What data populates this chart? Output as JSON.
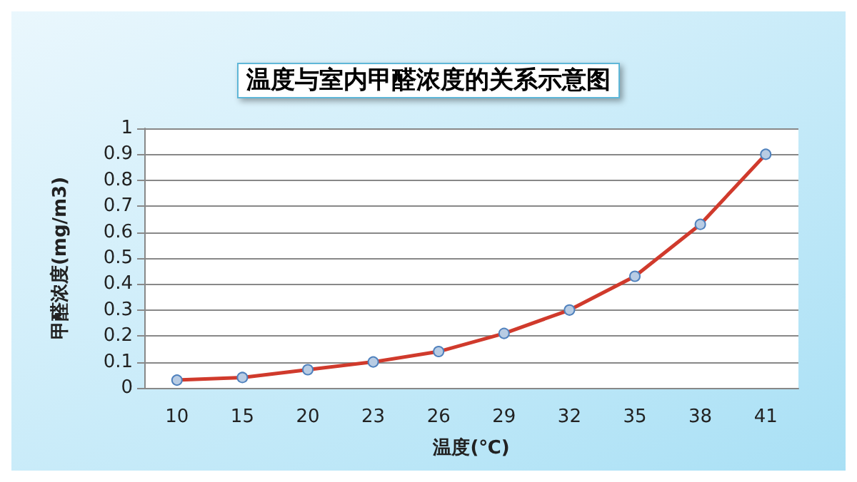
{
  "chart_data": {
    "type": "line",
    "title": "温度与室内甲醛浓度的关系示意图",
    "xlabel": "温度(℃)",
    "ylabel": "甲醛浓度(mg/m3)",
    "categories": [
      "10",
      "15",
      "20",
      "23",
      "26",
      "29",
      "32",
      "35",
      "38",
      "41"
    ],
    "series": [
      {
        "color": "#d03a2c",
        "values": [
          0.03,
          0.04,
          0.07,
          0.1,
          0.14,
          0.21,
          0.3,
          0.43,
          0.63,
          0.9
        ]
      }
    ],
    "ylim": [
      0,
      1
    ],
    "yticks": [
      0,
      0.1,
      0.2,
      0.3,
      0.4,
      0.5,
      0.6,
      0.7,
      0.8,
      0.9,
      1
    ],
    "grid": "y",
    "legend": false,
    "marker": "circle",
    "line_style": "solid"
  }
}
